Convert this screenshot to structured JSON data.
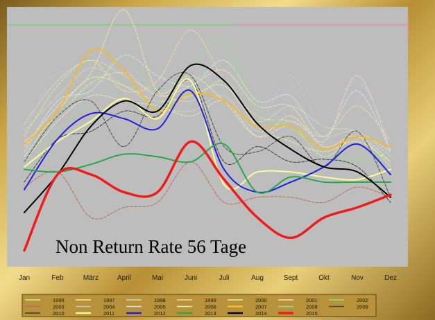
{
  "chart_data": {
    "type": "line",
    "title": "Non Return Rate 56 Tage",
    "xlabel": "",
    "ylabel": "",
    "categories": [
      "Jan",
      "Feb",
      "März",
      "April",
      "Mai",
      "Juni",
      "Juli",
      "Aug",
      "Sept",
      "Okt",
      "Nov",
      "Dez"
    ],
    "ylim": [
      0,
      100
    ],
    "grid": false,
    "legend_position": "bottom",
    "background": "#bdbdbd",
    "reference_line": {
      "value": 94,
      "colors": [
        "#7fd27a",
        "#e88fb0"
      ]
    },
    "series": [
      {
        "name": "1996",
        "color": "#d8e2a8",
        "width": 1,
        "values": [
          55,
          72,
          80,
          74,
          67,
          64,
          72,
          56,
          62,
          54,
          52,
          44
        ]
      },
      {
        "name": "1997",
        "color": "#f3e7a6",
        "width": 1,
        "values": [
          46,
          62,
          75,
          100,
          68,
          74,
          64,
          50,
          58,
          46,
          50,
          38
        ]
      },
      {
        "name": "1998",
        "color": "#d0d8bc",
        "width": 1,
        "values": [
          52,
          66,
          77,
          70,
          62,
          60,
          66,
          52,
          56,
          50,
          52,
          42
        ]
      },
      {
        "name": "1999",
        "color": "#f2dba0",
        "width": 1,
        "values": [
          50,
          70,
          80,
          68,
          72,
          92,
          72,
          58,
          56,
          50,
          62,
          48
        ]
      },
      {
        "name": "2000",
        "color": "#e6eda6",
        "width": 1,
        "values": [
          42,
          60,
          73,
          70,
          64,
          66,
          70,
          54,
          48,
          44,
          48,
          40
        ]
      },
      {
        "name": "2001",
        "color": "#f4dfb8",
        "width": 1,
        "values": [
          48,
          58,
          71,
          75,
          66,
          70,
          76,
          62,
          62,
          48,
          74,
          44
        ]
      },
      {
        "name": "2002",
        "color": "#8fe08a",
        "width": 1,
        "values": [
          40,
          58,
          70,
          82,
          68,
          78,
          88,
          62,
          54,
          44,
          40,
          42
        ]
      },
      {
        "name": "2003",
        "color": "#bf6a55",
        "width": 1,
        "values": [
          30,
          36,
          18,
          22,
          24,
          40,
          24,
          26,
          26,
          24,
          30,
          26
        ]
      },
      {
        "name": "2004",
        "color": "#bfc7cf",
        "width": 1,
        "values": [
          52,
          75,
          70,
          76,
          64,
          72,
          74,
          56,
          74,
          54,
          72,
          48
        ]
      },
      {
        "name": "2005",
        "color": "#d6dfec",
        "width": 1,
        "values": [
          44,
          64,
          68,
          82,
          74,
          70,
          80,
          64,
          66,
          50,
          68,
          44
        ]
      },
      {
        "name": "2006",
        "color": "#e4e4c8",
        "width": 1,
        "values": [
          40,
          56,
          66,
          64,
          62,
          58,
          64,
          50,
          54,
          42,
          50,
          40
        ]
      },
      {
        "name": "2007",
        "color": "#f5b930",
        "width": 2,
        "values": [
          47,
          60,
          84,
          76,
          60,
          67,
          64,
          54,
          54,
          45,
          50,
          46
        ]
      },
      {
        "name": "2008",
        "color": "#9dd890",
        "width": 1,
        "values": [
          36,
          52,
          64,
          72,
          62,
          68,
          82,
          58,
          54,
          42,
          42,
          44
        ]
      },
      {
        "name": "2009",
        "color": "#4a4a4a",
        "width": 1,
        "values": [
          40,
          58,
          64,
          46,
          68,
          74,
          46,
          44,
          50,
          38,
          52,
          26
        ]
      },
      {
        "name": "2010",
        "color": "#3a3a3a",
        "width": 1,
        "values": [
          32,
          49,
          52,
          60,
          58,
          72,
          40,
          46,
          40,
          41,
          38,
          24
        ]
      },
      {
        "name": "2011",
        "color": "#fbfb98",
        "width": 2,
        "values": [
          38,
          48,
          56,
          65,
          57,
          72,
          31,
          36,
          36,
          34,
          33,
          37
        ]
      },
      {
        "name": "2012",
        "color": "#2020dc",
        "width": 2,
        "values": [
          29,
          49,
          59,
          57,
          53,
          68,
          37,
          28,
          32,
          38,
          47,
          35
        ]
      },
      {
        "name": "2013",
        "color": "#28a84a",
        "width": 2,
        "values": [
          37,
          36,
          39,
          43,
          42,
          40,
          47,
          28,
          34,
          32,
          32,
          32
        ]
      },
      {
        "name": "2014",
        "color": "#000000",
        "width": 2,
        "values": [
          20,
          35,
          54,
          64,
          60,
          78,
          72,
          55,
          45,
          38,
          36,
          26
        ]
      },
      {
        "name": "2015",
        "color": "#ee1c1c",
        "width": 3.5,
        "values": [
          5,
          35,
          35,
          28,
          28,
          48,
          33,
          18,
          10,
          18,
          22,
          27
        ]
      }
    ]
  }
}
